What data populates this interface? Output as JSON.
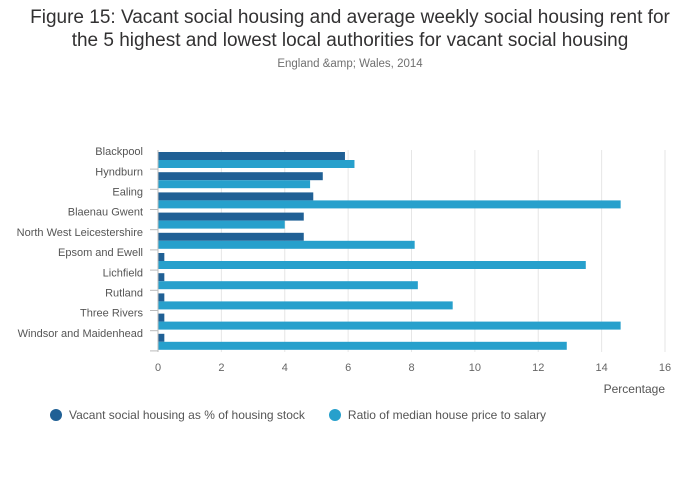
{
  "title_line1": "Figure 15: Vacant social housing and average weekly social housing rent for",
  "title_line2": "the 5 highest and lowest local authorities for vacant social housing",
  "subtitle": "England &amp; Wales, 2014",
  "chart_data": {
    "type": "bar",
    "orientation": "horizontal",
    "categories": [
      "Blackpool",
      "Hyndburn",
      "Ealing",
      "Blaenau Gwent",
      "North West Leicestershire",
      "Epsom and Ewell",
      "Lichfield",
      "Rutland",
      "Three Rivers",
      "Windsor and Maidenhead"
    ],
    "series": [
      {
        "name": "Vacant social housing as % of housing stock",
        "color": "#206095",
        "values": [
          5.9,
          5.2,
          4.9,
          4.6,
          4.6,
          0.2,
          0.2,
          0.2,
          0.2,
          0.2
        ]
      },
      {
        "name": "Ratio of median house price to salary",
        "color": "#27a0cc",
        "values": [
          6.2,
          4.8,
          14.6,
          4.0,
          8.1,
          13.5,
          8.2,
          9.3,
          14.6,
          12.9
        ]
      }
    ],
    "xlabel": "Percentage",
    "xlim": [
      0,
      16
    ],
    "xticks": [
      0,
      2,
      4,
      6,
      8,
      10,
      12,
      14,
      16
    ],
    "grid": true,
    "legend_position": "bottom-left"
  }
}
